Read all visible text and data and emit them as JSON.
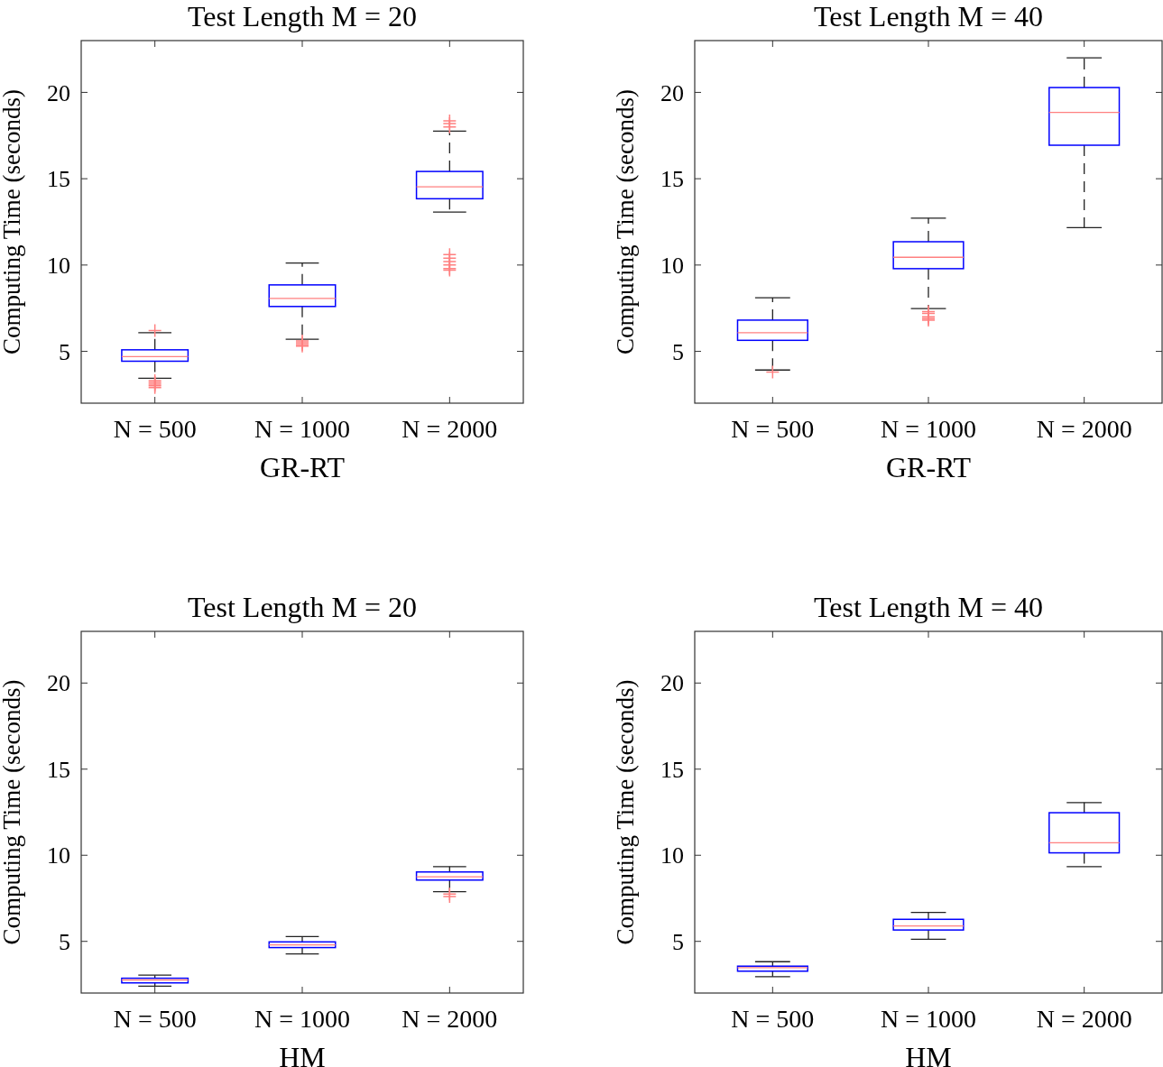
{
  "chart_data": [
    {
      "type": "box",
      "title": "Test Length M = 20",
      "xlabel": "GR-RT",
      "ylabel": "Computing Time (seconds)",
      "categories": [
        "N = 500",
        "N = 1000",
        "N = 2000"
      ],
      "ylim": [
        2,
        23
      ],
      "yticks": [
        5,
        10,
        15,
        20
      ],
      "grid": false,
      "marker": "cross",
      "series": [
        {
          "color": "#0000ff",
          "boxes": [
            {
              "low": 3.44,
              "q1": 4.43,
              "median": 4.7,
              "q3": 5.09,
              "high": 6.08,
              "outliers": [
                6.2,
                3.3,
                3.2,
                3.1,
                3.0,
                2.9
              ]
            },
            {
              "low": 5.7,
              "q1": 7.6,
              "median": 8.07,
              "q3": 8.85,
              "high": 10.12,
              "outliers": [
                5.6,
                5.5,
                5.4,
                5.3
              ]
            },
            {
              "low": 13.07,
              "q1": 13.84,
              "median": 14.53,
              "q3": 15.42,
              "high": 17.76,
              "outliers": [
                18.0,
                18.2,
                18.35,
                10.6,
                10.4,
                10.2,
                10.0,
                9.8,
                9.7
              ]
            }
          ]
        }
      ]
    },
    {
      "type": "box",
      "title": "Test Length M = 40",
      "xlabel": "GR-RT",
      "ylabel": "Computing Time (seconds)",
      "categories": [
        "N = 500",
        "N = 1000",
        "N = 2000"
      ],
      "ylim": [
        2,
        23
      ],
      "yticks": [
        5,
        10,
        15,
        20
      ],
      "grid": false,
      "marker": "cross",
      "series": [
        {
          "color": "#0000ff",
          "boxes": [
            {
              "low": 3.92,
              "q1": 5.64,
              "median": 6.08,
              "q3": 6.81,
              "high": 8.11,
              "outliers": [
                3.8
              ]
            },
            {
              "low": 7.48,
              "q1": 9.79,
              "median": 10.45,
              "q3": 11.35,
              "high": 12.72,
              "outliers": [
                7.3,
                7.2,
                7.0,
                6.9,
                6.8
              ]
            },
            {
              "low": 12.17,
              "q1": 16.94,
              "median": 18.84,
              "q3": 20.28,
              "high": 22.0
            }
          ]
        }
      ]
    },
    {
      "type": "box",
      "title": "Test Length M = 20",
      "xlabel": "HM",
      "ylabel": "Computing Time (seconds)",
      "categories": [
        "N = 500",
        "N = 1000",
        "N = 2000"
      ],
      "ylim": [
        2,
        23
      ],
      "yticks": [
        5,
        10,
        15,
        20
      ],
      "grid": false,
      "marker": "cross",
      "series": [
        {
          "color": "#0000ff",
          "boxes": [
            {
              "low": 2.4,
              "q1": 2.59,
              "median": 2.76,
              "q3": 2.86,
              "high": 3.04
            },
            {
              "low": 4.27,
              "q1": 4.64,
              "median": 4.79,
              "q3": 4.97,
              "high": 5.28
            },
            {
              "low": 7.88,
              "q1": 8.56,
              "median": 8.75,
              "q3": 9.03,
              "high": 9.34,
              "outliers": [
                7.75,
                7.6
              ]
            }
          ]
        }
      ]
    },
    {
      "type": "box",
      "title": "Test Length M = 40",
      "xlabel": "HM",
      "ylabel": "Computing Time (seconds)",
      "categories": [
        "N = 500",
        "N = 1000",
        "N = 2000"
      ],
      "ylim": [
        2,
        23
      ],
      "yticks": [
        5,
        10,
        15,
        20
      ],
      "grid": false,
      "series": [
        {
          "color": "#0000ff",
          "boxes": [
            {
              "low": 2.95,
              "q1": 3.27,
              "median": 3.47,
              "q3": 3.56,
              "high": 3.82
            },
            {
              "low": 5.12,
              "q1": 5.66,
              "median": 5.89,
              "q3": 6.28,
              "high": 6.68
            },
            {
              "low": 9.34,
              "q1": 10.14,
              "median": 10.73,
              "q3": 12.47,
              "high": 13.06
            }
          ]
        }
      ]
    }
  ]
}
